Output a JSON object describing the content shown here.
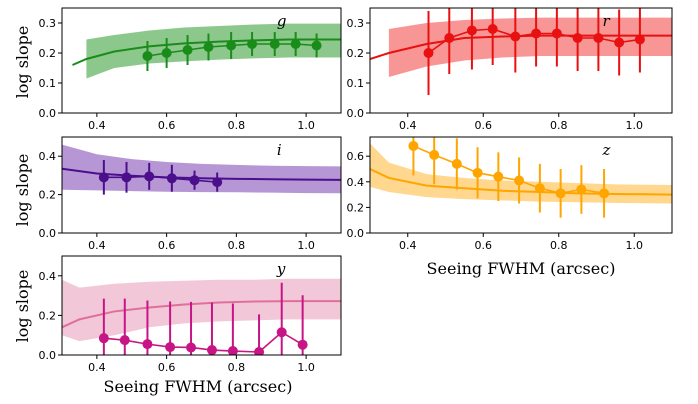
{
  "figure": {
    "ylabel": "log slope",
    "xlabel": "Seeing FWHM (arcsec)"
  },
  "chart_data": [
    {
      "type": "line",
      "title": "g",
      "color": "#1a8c1a",
      "band_color": "#2e9a2e",
      "xlim": [
        0.3,
        1.1
      ],
      "ylim": [
        0.0,
        0.35
      ],
      "xticks": [
        0.4,
        0.6,
        0.8,
        1.0
      ],
      "yticks": [
        0.0,
        0.1,
        0.2,
        0.3
      ],
      "show_ylabel": true,
      "show_xlabel": false,
      "model": {
        "x": [
          0.33,
          0.37,
          0.45,
          0.55,
          0.65,
          0.75,
          0.85,
          0.95,
          1.1
        ],
        "y": [
          0.16,
          0.18,
          0.205,
          0.222,
          0.232,
          0.238,
          0.242,
          0.245,
          0.245
        ],
        "lo": [
          null,
          0.115,
          0.15,
          0.165,
          0.172,
          0.178,
          0.182,
          0.185,
          0.185
        ],
        "hi": [
          null,
          0.245,
          0.26,
          0.275,
          0.285,
          0.29,
          0.295,
          0.298,
          0.298
        ]
      },
      "points": {
        "x": [
          0.545,
          0.6,
          0.66,
          0.72,
          0.785,
          0.845,
          0.91,
          0.97,
          1.03
        ],
        "y": [
          0.19,
          0.2,
          0.21,
          0.22,
          0.225,
          0.23,
          0.23,
          0.23,
          0.225
        ],
        "err": [
          0.05,
          0.05,
          0.05,
          0.045,
          0.045,
          0.04,
          0.04,
          0.04,
          0.04
        ]
      }
    },
    {
      "type": "line",
      "title": "r",
      "color": "#e81010",
      "band_color": "#f24040",
      "xlim": [
        0.3,
        1.1
      ],
      "ylim": [
        0.0,
        0.35
      ],
      "xticks": [
        0.4,
        0.6,
        0.8,
        1.0
      ],
      "yticks": [
        0.0,
        0.1,
        0.2,
        0.3
      ],
      "show_ylabel": false,
      "show_xlabel": false,
      "model": {
        "x": [
          0.3,
          0.35,
          0.45,
          0.55,
          0.65,
          0.75,
          0.85,
          0.95,
          1.1
        ],
        "y": [
          0.18,
          0.2,
          0.23,
          0.25,
          0.255,
          0.258,
          0.258,
          0.258,
          0.258
        ],
        "lo": [
          null,
          0.12,
          0.155,
          0.175,
          0.185,
          0.19,
          0.19,
          0.19,
          0.19
        ],
        "hi": [
          null,
          0.28,
          0.3,
          0.31,
          0.315,
          0.318,
          0.318,
          0.318,
          0.318
        ]
      },
      "points": {
        "x": [
          0.455,
          0.51,
          0.57,
          0.625,
          0.685,
          0.74,
          0.795,
          0.85,
          0.905,
          0.96,
          1.015
        ],
        "y": [
          0.2,
          0.25,
          0.275,
          0.28,
          0.255,
          0.265,
          0.265,
          0.25,
          0.25,
          0.235,
          0.245
        ],
        "err": [
          0.14,
          0.12,
          0.13,
          0.12,
          0.12,
          0.11,
          0.11,
          0.11,
          0.11,
          0.11,
          0.11
        ]
      }
    },
    {
      "type": "line",
      "title": "i",
      "color": "#4b0f8c",
      "band_color": "#7b3fb5",
      "xlim": [
        0.3,
        1.1
      ],
      "ylim": [
        0.0,
        0.5
      ],
      "xticks": [
        0.4,
        0.6,
        0.8,
        1.0
      ],
      "yticks": [
        0.0,
        0.2,
        0.4
      ],
      "show_ylabel": true,
      "show_xlabel": false,
      "model": {
        "x": [
          0.3,
          0.4,
          0.5,
          0.6,
          0.7,
          0.8,
          0.9,
          1.0,
          1.1
        ],
        "y": [
          0.335,
          0.31,
          0.298,
          0.29,
          0.285,
          0.282,
          0.28,
          0.278,
          0.277
        ],
        "lo": [
          0.225,
          0.222,
          0.218,
          0.215,
          0.213,
          0.212,
          0.21,
          0.208,
          0.207
        ],
        "hi": [
          0.46,
          0.41,
          0.385,
          0.37,
          0.36,
          0.355,
          0.35,
          0.348,
          0.347
        ]
      },
      "points": {
        "x": [
          0.42,
          0.485,
          0.55,
          0.615,
          0.68,
          0.745
        ],
        "y": [
          0.29,
          0.29,
          0.295,
          0.285,
          0.275,
          0.265
        ],
        "err": [
          0.09,
          0.08,
          0.07,
          0.07,
          0.05,
          0.05
        ]
      }
    },
    {
      "type": "line",
      "title": "z",
      "color": "#ffa500",
      "band_color": "#ffb732",
      "xlim": [
        0.3,
        1.1
      ],
      "ylim": [
        0.0,
        0.75
      ],
      "xticks": [
        0.4,
        0.6,
        0.8,
        1.0
      ],
      "yticks": [
        0.0,
        0.2,
        0.4,
        0.6
      ],
      "show_ylabel": false,
      "show_xlabel": true,
      "model": {
        "x": [
          0.3,
          0.35,
          0.45,
          0.55,
          0.65,
          0.75,
          0.85,
          0.95,
          1.1
        ],
        "y": [
          0.5,
          0.43,
          0.37,
          0.35,
          0.33,
          0.32,
          0.31,
          0.305,
          0.3
        ],
        "lo": [
          0.36,
          0.32,
          0.28,
          0.265,
          0.255,
          0.245,
          0.24,
          0.235,
          0.23
        ],
        "hi": [
          0.7,
          0.55,
          0.46,
          0.43,
          0.41,
          0.4,
          0.39,
          0.38,
          0.375
        ]
      },
      "points": {
        "x": [
          0.415,
          0.47,
          0.53,
          0.585,
          0.64,
          0.695,
          0.75,
          0.805,
          0.86,
          0.92
        ],
        "y": [
          0.68,
          0.61,
          0.54,
          0.47,
          0.44,
          0.41,
          0.35,
          0.31,
          0.34,
          0.31
        ],
        "err": [
          0.23,
          0.23,
          0.2,
          0.2,
          0.19,
          0.18,
          0.19,
          0.19,
          0.19,
          0.19
        ]
      }
    },
    {
      "type": "line",
      "title": "y",
      "color": "#c71585",
      "band_color": "#e899b8",
      "line_color": "#e0709a",
      "xlim": [
        0.3,
        1.1
      ],
      "ylim": [
        0.0,
        0.5
      ],
      "xticks": [
        0.4,
        0.6,
        0.8,
        1.0
      ],
      "yticks": [
        0.0,
        0.2,
        0.4
      ],
      "show_ylabel": true,
      "show_xlabel": true,
      "model": {
        "x": [
          0.3,
          0.35,
          0.45,
          0.55,
          0.65,
          0.75,
          0.85,
          0.95,
          1.1
        ],
        "y": [
          0.14,
          0.18,
          0.22,
          0.24,
          0.255,
          0.265,
          0.27,
          0.272,
          0.272
        ],
        "lo": [
          0.1,
          0.07,
          0.1,
          0.14,
          0.16,
          0.17,
          0.175,
          0.18,
          0.18
        ],
        "hi": [
          0.38,
          0.34,
          0.36,
          0.37,
          0.375,
          0.38,
          0.38,
          0.385,
          0.385
        ]
      },
      "points": {
        "x": [
          0.42,
          0.48,
          0.545,
          0.61,
          0.67,
          0.73,
          0.79,
          0.865,
          0.93,
          0.99
        ],
        "y": [
          0.085,
          0.075,
          0.055,
          0.04,
          0.038,
          0.025,
          0.02,
          0.015,
          0.115,
          0.052
        ],
        "err": [
          0.2,
          0.21,
          0.22,
          0.23,
          0.23,
          0.24,
          0.24,
          0.19,
          0.25,
          0.25
        ]
      }
    }
  ]
}
